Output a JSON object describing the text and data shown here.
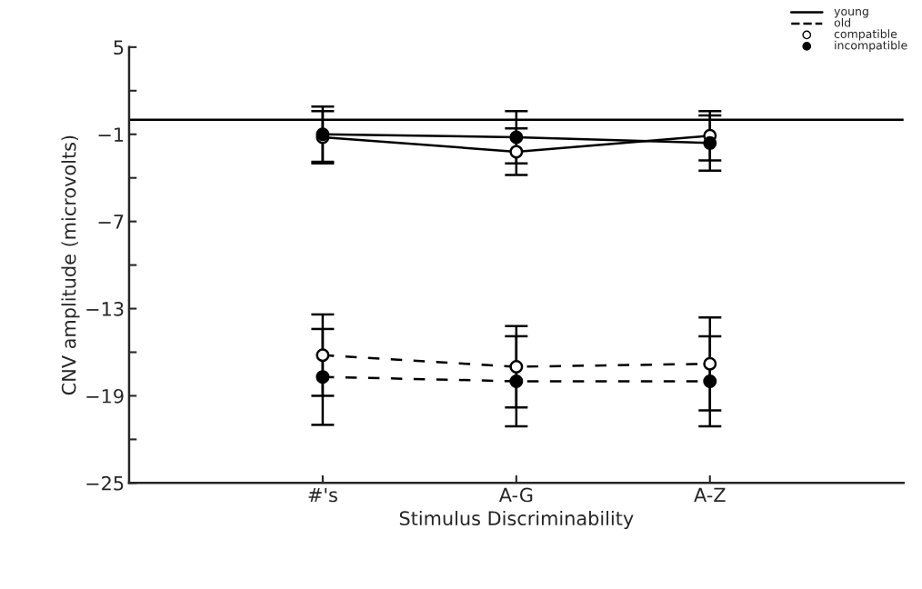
{
  "chart_data": {
    "type": "line",
    "xlabel": "Stimulus Discriminability",
    "ylabel": "CNV amplitude (microvolts)",
    "categories": [
      "#'s",
      "A-G",
      "A-Z"
    ],
    "series": [
      {
        "color": "#ffffff",
        "line_style": "solid",
        "values": [
          -1.2,
          -2.2,
          -1.1
        ],
        "errors": [
          1.8,
          1.6,
          1.7
        ]
      },
      {
        "color": "#000000",
        "line_style": "solid",
        "values": [
          -1.0,
          -1.2,
          -1.6
        ],
        "errors": [
          1.9,
          1.8,
          1.9
        ]
      },
      {
        "color": "#ffffff",
        "line_style": "dashed",
        "values": [
          -16.2,
          -17.0,
          -16.8
        ],
        "errors": [
          2.8,
          2.8,
          3.2
        ]
      },
      {
        "color": "#000000",
        "line_style": "dashed",
        "values": [
          -17.7,
          -18.0,
          -18.0
        ],
        "errors": [
          3.3,
          3.1,
          3.1
        ]
      }
    ],
    "marker": "circle",
    "ylim": [
      -25,
      5
    ],
    "yticks": [
      5,
      {
        "value": 2,
        "label": null
      },
      -1,
      {
        "value": -4,
        "label": null
      },
      -7,
      {
        "value": -10,
        "label": null
      },
      -13,
      {
        "value": -16,
        "label": null
      },
      -19,
      {
        "value": -22,
        "label": null
      },
      -25
    ],
    "ref_lines": [
      {
        "axis": "y",
        "value": 0,
        "label": null,
        "color": "#000000"
      }
    ],
    "annotations": [
      "young",
      "old",
      "compatible",
      "incompatible"
    ],
    "grid": false
  }
}
